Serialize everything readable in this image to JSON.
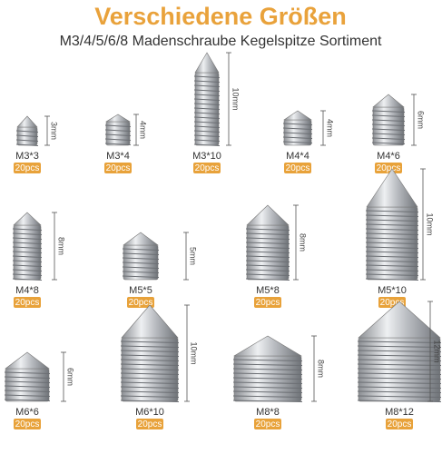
{
  "header": {
    "title": "Verschiedene Größen",
    "subtitle": "M3/4/5/6/8 Madenschraube Kegelspitze Sortiment"
  },
  "items": [
    {
      "size": "M3*3",
      "length": "3mm",
      "qty": "20pcs"
    },
    {
      "size": "M3*4",
      "length": "4mm",
      "qty": "20pcs"
    },
    {
      "size": "M3*10",
      "length": "10mm",
      "qty": "20pcs"
    },
    {
      "size": "M4*4",
      "length": "4mm",
      "qty": "20pcs"
    },
    {
      "size": "M4*6",
      "length": "6mm",
      "qty": "20pcs"
    },
    {
      "size": "M4*8",
      "length": "8mm",
      "qty": "20pcs"
    },
    {
      "size": "M5*5",
      "length": "5mm",
      "qty": "20pcs"
    },
    {
      "size": "M5*8",
      "length": "8mm",
      "qty": "20pcs"
    },
    {
      "size": "M5*10",
      "length": "10mm",
      "qty": "20pcs"
    },
    {
      "size": "M6*6",
      "length": "6mm",
      "qty": "20pcs"
    },
    {
      "size": "M6*10",
      "length": "10mm",
      "qty": "20pcs"
    },
    {
      "size": "M8*8",
      "length": "8mm",
      "qty": "20pcs"
    },
    {
      "size": "M8*12",
      "length": "12mm",
      "qty": "20pcs"
    }
  ]
}
